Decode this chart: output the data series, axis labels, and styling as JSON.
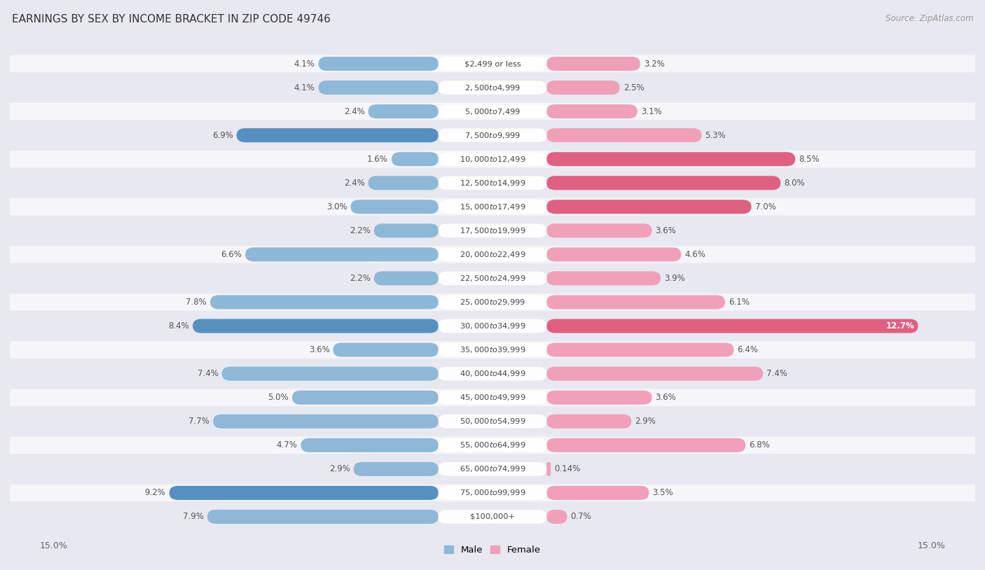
{
  "title": "EARNINGS BY SEX BY INCOME BRACKET IN ZIP CODE 49746",
  "source": "Source: ZipAtlas.com",
  "categories": [
    "$2,499 or less",
    "$2,500 to $4,999",
    "$5,000 to $7,499",
    "$7,500 to $9,999",
    "$10,000 to $12,499",
    "$12,500 to $14,999",
    "$15,000 to $17,499",
    "$17,500 to $19,999",
    "$20,000 to $22,499",
    "$22,500 to $24,999",
    "$25,000 to $29,999",
    "$30,000 to $34,999",
    "$35,000 to $39,999",
    "$40,000 to $44,999",
    "$45,000 to $49,999",
    "$50,000 to $54,999",
    "$55,000 to $64,999",
    "$65,000 to $74,999",
    "$75,000 to $99,999",
    "$100,000+"
  ],
  "male": [
    4.1,
    4.1,
    2.4,
    6.9,
    1.6,
    2.4,
    3.0,
    2.2,
    6.6,
    2.2,
    7.8,
    8.4,
    3.6,
    7.4,
    5.0,
    7.7,
    4.7,
    2.9,
    9.2,
    7.9
  ],
  "female": [
    3.2,
    2.5,
    3.1,
    5.3,
    8.5,
    8.0,
    7.0,
    3.6,
    4.6,
    3.9,
    6.1,
    12.7,
    6.4,
    7.4,
    3.6,
    2.9,
    6.8,
    0.14,
    3.5,
    0.7
  ],
  "male_color": "#8db8d8",
  "female_color": "#f0a0b8",
  "male_dark_color": "#5590c0",
  "female_dark_color": "#e06080",
  "highlight_male_idx": [
    3,
    11,
    18
  ],
  "highlight_female_idx": [
    4,
    5,
    6,
    11
  ],
  "x_max": 15.0,
  "bg_color": "#e8e8f0",
  "row_light": "#f5f5fa",
  "row_dark": "#e8e8f0",
  "label_color": "#555555",
  "cat_label_color": "#444444",
  "title_color": "#333333",
  "source_color": "#999999"
}
